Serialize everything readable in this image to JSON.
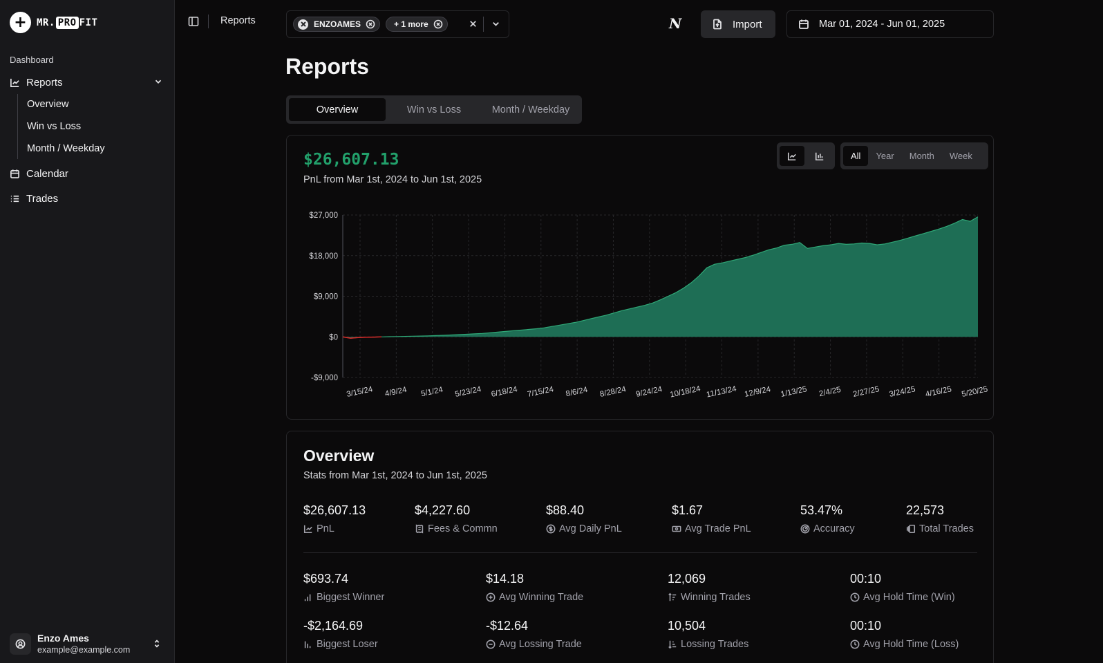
{
  "brand": {
    "mark": "+",
    "text_before": "MR.",
    "text_highlight": "PRO",
    "text_after": "FIT"
  },
  "sidebar": {
    "group_label": "Dashboard",
    "reports_label": "Reports",
    "sub_items": [
      "Overview",
      "Win vs Loss",
      "Month / Weekday"
    ],
    "calendar_label": "Calendar",
    "trades_label": "Trades"
  },
  "user": {
    "name": "Enzo Ames",
    "email": "example@example.com"
  },
  "topbar": {
    "breadcrumb": "Reports",
    "chips": [
      {
        "label": "ENZOAMES"
      },
      {
        "label": "+ 1 more"
      }
    ],
    "notion_label": "N",
    "import_label": "Import",
    "date_range": "Mar 01, 2024 - Jun 01, 2025"
  },
  "page": {
    "title": "Reports",
    "tabs": [
      "Overview",
      "Win vs Loss",
      "Month / Weekday"
    ],
    "active_tab": "Overview"
  },
  "pnl_card": {
    "total": "$26,607.13",
    "subtitle": "PnL from Mar 1st, 2024 to Jun 1st, 2025",
    "ranges": [
      "All",
      "Year",
      "Month",
      "Week"
    ],
    "active_range": "All"
  },
  "chart_data": {
    "type": "area",
    "title": "",
    "xlabel": "",
    "ylabel": "",
    "ylim": [
      -9000,
      27000
    ],
    "yticks": [
      27000,
      18000,
      9000,
      0,
      -9000
    ],
    "ytick_labels": [
      "$27,000",
      "$18,000",
      "$9,000",
      "$0",
      "-$9,000"
    ],
    "x_tick_labels": [
      "3/15/24",
      "4/9/24",
      "5/1/24",
      "5/23/24",
      "6/18/24",
      "7/15/24",
      "8/6/24",
      "8/28/24",
      "9/24/24",
      "10/18/24",
      "11/13/24",
      "12/9/24",
      "1/13/25",
      "2/4/25",
      "2/27/25",
      "3/24/25",
      "4/16/25",
      "5/20/25"
    ],
    "grid": true,
    "series": [
      {
        "values": [
          0,
          -300,
          -150,
          -80,
          -50,
          0,
          40,
          70,
          100,
          140,
          180,
          220,
          280,
          350,
          420,
          500,
          580,
          660,
          760,
          900,
          1050,
          1200,
          1350,
          1500,
          1650,
          1800,
          2000,
          2300,
          2600,
          2900,
          3200,
          3600,
          4000,
          4400,
          4800,
          5300,
          5800,
          6200,
          6600,
          7000,
          7500,
          8200,
          9000,
          9800,
          10800,
          12000,
          13500,
          15300,
          16100,
          16400,
          16800,
          17200,
          17600,
          18100,
          18700,
          19300,
          19700,
          20300,
          20500,
          20900,
          19600,
          19900,
          20200,
          20400,
          20700,
          20500,
          20600,
          20800,
          20700,
          20400,
          20600,
          21000,
          21400,
          21900,
          22400,
          22900,
          23400,
          23900,
          24500,
          25200,
          26000,
          25600,
          26607
        ]
      }
    ],
    "colors": {
      "fill": "#1e6e55",
      "stroke": "#2fa877",
      "negative": "#dc2626"
    }
  },
  "overview": {
    "title": "Overview",
    "subtitle": "Stats from Mar 1st, 2024 to Jun 1st, 2025",
    "row1": [
      {
        "value": "$26,607.13",
        "label": "PnL",
        "icon": "line-chart-icon"
      },
      {
        "value": "$4,227.60",
        "label": "Fees & Commn",
        "icon": "receipt-icon"
      },
      {
        "value": "$88.40",
        "label": "Avg Daily PnL",
        "icon": "dollar-circle-icon"
      },
      {
        "value": "$1.67",
        "label": "Avg Trade PnL",
        "icon": "banknote-icon"
      },
      {
        "value": "53.47%",
        "label": "Accuracy",
        "icon": "target-icon"
      },
      {
        "value": "22,573",
        "label": "Total Trades",
        "icon": "stack-icon"
      }
    ],
    "row2": [
      {
        "value": "$693.74",
        "label": "Biggest Winner",
        "icon": "bar-up-icon"
      },
      {
        "value": "$14.18",
        "label": "Avg Winning Trade",
        "icon": "plus-circle-icon"
      },
      {
        "value": "12,069",
        "label": "Winning Trades",
        "icon": "sort-up-icon"
      },
      {
        "value": "00:10",
        "label": "Avg Hold Time (Win)",
        "icon": "clock-icon"
      }
    ],
    "row3": [
      {
        "value": "-$2,164.69",
        "label": "Biggest Loser",
        "icon": "bar-down-icon"
      },
      {
        "value": "-$12.64",
        "label": "Avg Lossing Trade",
        "icon": "minus-circle-icon"
      },
      {
        "value": "10,504",
        "label": "Lossing Trades",
        "icon": "sort-down-icon"
      },
      {
        "value": "00:10",
        "label": "Avg Hold Time (Loss)",
        "icon": "clock-icon"
      }
    ]
  }
}
